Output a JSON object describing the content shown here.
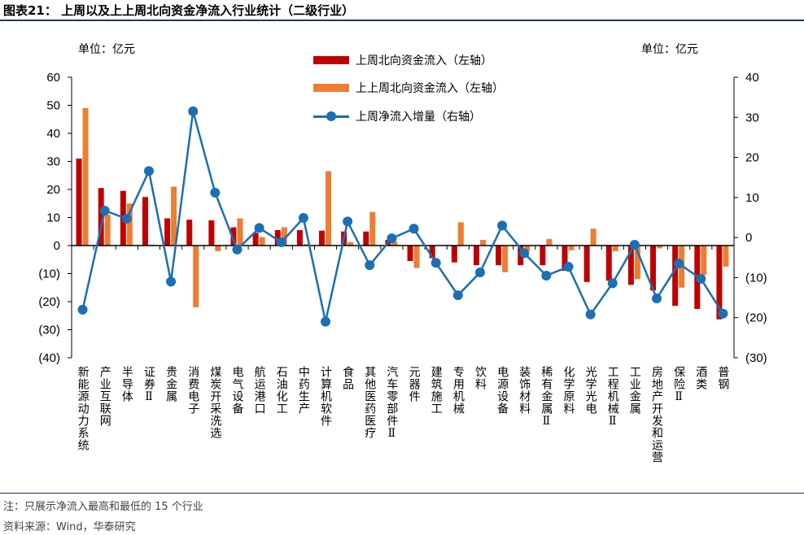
{
  "title": "图表21： 上周以及上上周北向资金净流入行业统计（二级行业）",
  "notes": [
    "注：只展示净流入最高和最低的 15 个行业",
    "资料来源：Wind，华泰研究"
  ],
  "chart_data": {
    "type": "bar+line",
    "unit_left": "单位：亿元",
    "unit_right": "单位：亿元",
    "categories": [
      "新能源动力系统",
      "产业互联网",
      "半导体",
      "证券Ⅱ",
      "贵金属",
      "消费电子",
      "煤炭开采洗选",
      "电气设备",
      "航运港口",
      "石油化工",
      "中药生产",
      "计算机软件",
      "食品",
      "其他医药医疗",
      "汽车零部件Ⅱ",
      "元器件",
      "建筑施工",
      "专用机械",
      "饮料",
      "电源设备",
      "装饰材料",
      "稀有金属Ⅱ",
      "化学原料",
      "光学光电",
      "工程机械Ⅱ",
      "工业金属",
      "房地产开发和运营",
      "保险Ⅱ",
      "酒类",
      "普钢"
    ],
    "series": [
      {
        "name": "上周北向资金流入（左轴）",
        "type": "bar",
        "axis": "left",
        "color": "#C00000",
        "values": [
          31,
          20.5,
          19.5,
          17.3,
          9.7,
          9.2,
          9,
          6.5,
          4.5,
          5.5,
          5.5,
          5.3,
          5,
          5,
          2,
          -5.5,
          -4.5,
          -6,
          -7,
          -7,
          -7,
          -7,
          -9,
          -13,
          -12.5,
          -14,
          -16,
          -21.5,
          -22.6,
          -26.3
        ]
      },
      {
        "name": "上上周北向资金流入（左轴）",
        "type": "bar",
        "axis": "left",
        "color": "#ED7D31",
        "values": [
          49,
          11,
          15,
          0.3,
          21,
          -22,
          -2,
          9.7,
          3,
          6.5,
          0.5,
          26.5,
          1.2,
          12,
          1.5,
          -8,
          0,
          8.3,
          2,
          -9.5,
          -2,
          2.3,
          -1.7,
          6,
          -2,
          -12,
          -1,
          -15,
          -10.5,
          -7.5
        ]
      },
      {
        "name": "上周净流入增量（右轴）",
        "type": "line",
        "axis": "right",
        "color": "#1A6FB5",
        "values": [
          -18,
          6.7,
          4.7,
          16.6,
          -11,
          31.5,
          11.2,
          -3,
          2.4,
          -1.2,
          4.9,
          -21,
          4,
          -6.9,
          -0.2,
          2.2,
          -6.3,
          -14.4,
          -8.7,
          3,
          -3.9,
          -9.5,
          -7.3,
          -19.2,
          -11.4,
          -1.8,
          -15.2,
          -6.5,
          -10.3,
          -19
        ]
      }
    ],
    "left_axis": {
      "range": [
        -40,
        60
      ],
      "ticks": [
        60,
        50,
        40,
        30,
        20,
        10,
        0,
        -10,
        -20,
        -30,
        -40
      ],
      "tick_labels": [
        "60",
        "50",
        "40",
        "30",
        "20",
        "10",
        "0",
        "(10)",
        "(20)",
        "(30)",
        "(40)"
      ]
    },
    "right_axis": {
      "range": [
        -30,
        40
      ],
      "ticks": [
        40,
        30,
        20,
        10,
        0,
        -10,
        -20,
        -30
      ],
      "tick_labels": [
        "40",
        "30",
        "20",
        "10",
        "0",
        "(10)",
        "(20)",
        "(30)"
      ]
    },
    "grid": false,
    "legend_placement": "top-center"
  }
}
